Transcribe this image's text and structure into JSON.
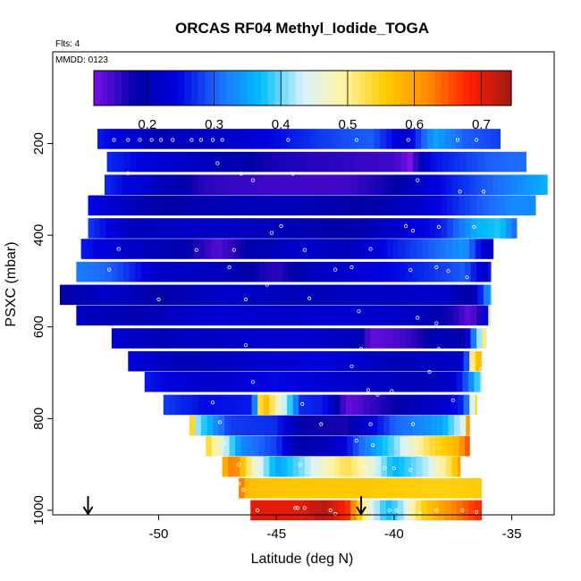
{
  "chart_data": {
    "type": "heatmap",
    "title": "ORCAS RF04 Methyl_Iodide_TOGA",
    "flights_label": "Flts: 4",
    "date_label": "MMDD: 0123",
    "xlabel": "Latitude (deg N)",
    "ylabel": "PSXC (mbar)",
    "xlim": [
      -54.5,
      -33.2
    ],
    "ylim": [
      1010,
      0
    ],
    "x_ticks": [
      -50,
      -45,
      -40,
      -35
    ],
    "x_tick_labels": [
      "-50",
      "-45",
      "-40",
      "-35"
    ],
    "y_ticks": [
      200,
      400,
      600,
      800,
      1000
    ],
    "y_tick_labels": [
      "200",
      "400",
      "600",
      "800",
      "1000"
    ],
    "colorbar": {
      "range": [
        0.12,
        0.745
      ],
      "ticks": [
        0.2,
        0.3,
        0.4,
        0.5,
        0.6,
        0.7
      ],
      "tick_labels": [
        "0.2",
        "0.3",
        "0.4",
        "0.5",
        "0.6",
        "0.7"
      ],
      "colors": [
        "#7a10e8",
        "#0000a8",
        "#0000e0",
        "#1e6cff",
        "#00bfff",
        "#d8f2ff",
        "#fff3a0",
        "#ffcc00",
        "#ff8a00",
        "#ff1e00",
        "#a01818"
      ]
    },
    "layers": [
      {
        "p": 190,
        "x0": -52.6,
        "x1": -35.5,
        "v": [
          [
            -52.6,
            0.26
          ],
          [
            -50,
            0.2
          ],
          [
            -47,
            0.22
          ],
          [
            -43,
            0.28
          ],
          [
            -41,
            0.3
          ],
          [
            -39.5,
            0.22
          ],
          [
            -38.3,
            0.35
          ],
          [
            -37,
            0.3
          ],
          [
            -35.5,
            0.28
          ]
        ]
      },
      {
        "p": 240,
        "x0": -52.2,
        "x1": -34.4,
        "v": [
          [
            -52.2,
            0.27
          ],
          [
            -50,
            0.23
          ],
          [
            -45,
            0.17
          ],
          [
            -40,
            0.15
          ],
          [
            -39.3,
            0.12
          ],
          [
            -38.5,
            0.25
          ],
          [
            -36,
            0.3
          ],
          [
            -34.4,
            0.31
          ]
        ]
      },
      {
        "p": 290,
        "x0": -52.3,
        "x1": -33.5,
        "v": [
          [
            -52.3,
            0.27
          ],
          [
            -49.5,
            0.2
          ],
          [
            -48,
            0.16
          ],
          [
            -45,
            0.15
          ],
          [
            -42,
            0.15
          ],
          [
            -40,
            0.18
          ],
          [
            -38,
            0.25
          ],
          [
            -36,
            0.3
          ],
          [
            -33.5,
            0.36
          ]
        ]
      },
      {
        "p": 335,
        "x0": -53.0,
        "x1": -34.0,
        "v": [
          [
            -53.0,
            0.25
          ],
          [
            -50,
            0.18
          ],
          [
            -47,
            0.2
          ],
          [
            -44,
            0.2
          ],
          [
            -41,
            0.18
          ],
          [
            -39,
            0.22
          ],
          [
            -37,
            0.28
          ],
          [
            -35,
            0.33
          ],
          [
            -34,
            0.33
          ]
        ]
      },
      {
        "p": 385,
        "x0": -53.0,
        "x1": -34.8,
        "v": [
          [
            -53.0,
            0.28
          ],
          [
            -51,
            0.2
          ],
          [
            -48,
            0.22
          ],
          [
            -45,
            0.2
          ],
          [
            -42,
            0.18
          ],
          [
            -40,
            0.22
          ],
          [
            -38,
            0.26
          ],
          [
            -36.5,
            0.36
          ],
          [
            -35.5,
            0.38
          ],
          [
            -34.8,
            0.3
          ]
        ]
      },
      {
        "p": 430,
        "x0": -53.3,
        "x1": -35.8,
        "v": [
          [
            -53.3,
            0.26
          ],
          [
            -51,
            0.21
          ],
          [
            -49,
            0.19
          ],
          [
            -47.5,
            0.14
          ],
          [
            -46,
            0.19
          ],
          [
            -44,
            0.22
          ],
          [
            -42,
            0.2
          ],
          [
            -40,
            0.26
          ],
          [
            -38,
            0.31
          ],
          [
            -37,
            0.34
          ],
          [
            -36,
            0.2
          ],
          [
            -35.8,
            0.28
          ]
        ]
      },
      {
        "p": 480,
        "x0": -53.5,
        "x1": -35.9,
        "v": [
          [
            -53.5,
            0.32
          ],
          [
            -52,
            0.3
          ],
          [
            -50,
            0.22
          ],
          [
            -47,
            0.2
          ],
          [
            -45,
            0.16
          ],
          [
            -43,
            0.22
          ],
          [
            -40,
            0.25
          ],
          [
            -38,
            0.28
          ],
          [
            -37,
            0.3
          ],
          [
            -36,
            0.2
          ],
          [
            -35.9,
            0.26
          ]
        ]
      },
      {
        "p": 530,
        "x0": -54.2,
        "x1": -35.9,
        "v": [
          [
            -54.2,
            0.18
          ],
          [
            -52,
            0.22
          ],
          [
            -50,
            0.18
          ],
          [
            -47,
            0.22
          ],
          [
            -44,
            0.2
          ],
          [
            -41,
            0.21
          ],
          [
            -38,
            0.22
          ],
          [
            -36.7,
            0.18
          ],
          [
            -35.9,
            0.36
          ]
        ]
      },
      {
        "p": 575,
        "x0": -53.5,
        "x1": -35.9,
        "v": [
          [
            -53.5,
            0.21
          ],
          [
            -51,
            0.19
          ],
          [
            -48,
            0.23
          ],
          [
            -45,
            0.22
          ],
          [
            -42,
            0.23
          ],
          [
            -39,
            0.21
          ],
          [
            -37.5,
            0.17
          ],
          [
            -36.8,
            0.13
          ],
          [
            -36.2,
            0.18
          ],
          [
            -35.9,
            0.45
          ]
        ]
      },
      {
        "p": 625,
        "x0": -52.0,
        "x1": -36.1,
        "v": [
          [
            -52.0,
            0.23
          ],
          [
            -50,
            0.2
          ],
          [
            -47,
            0.22
          ],
          [
            -44,
            0.23
          ],
          [
            -41.5,
            0.2
          ],
          [
            -41,
            0.13
          ],
          [
            -39.5,
            0.15
          ],
          [
            -38,
            0.2
          ],
          [
            -37,
            0.18
          ],
          [
            -36.6,
            0.33
          ],
          [
            -36.1,
            0.52
          ]
        ]
      },
      {
        "p": 675,
        "x0": -51.3,
        "x1": -36.3,
        "v": [
          [
            -51.3,
            0.24
          ],
          [
            -49,
            0.2
          ],
          [
            -46,
            0.22
          ],
          [
            -43,
            0.24
          ],
          [
            -40,
            0.2
          ],
          [
            -38,
            0.21
          ],
          [
            -37,
            0.22
          ],
          [
            -36.7,
            0.5
          ],
          [
            -36.3,
            0.6
          ]
        ]
      },
      {
        "p": 720,
        "x0": -50.6,
        "x1": -36.3,
        "v": [
          [
            -50.6,
            0.26
          ],
          [
            -48,
            0.22
          ],
          [
            -45,
            0.25
          ],
          [
            -42,
            0.22
          ],
          [
            -39,
            0.2
          ],
          [
            -37.5,
            0.22
          ],
          [
            -36.9,
            0.3
          ],
          [
            -36.3,
            0.42
          ]
        ]
      },
      {
        "p": 770,
        "x0": -49.8,
        "x1": -36.5,
        "v": [
          [
            -49.8,
            0.28
          ],
          [
            -48,
            0.25
          ],
          [
            -46,
            0.26
          ],
          [
            -45.6,
            0.6
          ],
          [
            -44.9,
            0.47
          ],
          [
            -44.3,
            0.36
          ],
          [
            -44,
            0.27
          ],
          [
            -43,
            0.26
          ],
          [
            -42,
            0.13
          ],
          [
            -40,
            0.18
          ],
          [
            -38,
            0.22
          ],
          [
            -37,
            0.27
          ],
          [
            -36.5,
            0.55
          ]
        ]
      },
      {
        "p": 815,
        "x0": -48.7,
        "x1": -36.8,
        "v": [
          [
            -48.7,
            0.6
          ],
          [
            -48.3,
            0.4
          ],
          [
            -47,
            0.28
          ],
          [
            -45,
            0.27
          ],
          [
            -44,
            0.18
          ],
          [
            -42,
            0.17
          ],
          [
            -40,
            0.3
          ],
          [
            -38,
            0.35
          ],
          [
            -37,
            0.45
          ],
          [
            -36.8,
            0.62
          ]
        ]
      },
      {
        "p": 860,
        "x0": -48.0,
        "x1": -36.8,
        "v": [
          [
            -48.0,
            0.55
          ],
          [
            -47.3,
            0.45
          ],
          [
            -46.5,
            0.33
          ],
          [
            -45,
            0.28
          ],
          [
            -44,
            0.18
          ],
          [
            -42.3,
            0.22
          ],
          [
            -41.5,
            0.3
          ],
          [
            -40,
            0.4
          ],
          [
            -38.5,
            0.53
          ],
          [
            -37.3,
            0.58
          ],
          [
            -36.8,
            0.66
          ]
        ]
      },
      {
        "p": 905,
        "x0": -47.3,
        "x1": -37.2,
        "v": [
          [
            -47.3,
            0.57
          ],
          [
            -46.8,
            0.64
          ],
          [
            -46,
            0.48
          ],
          [
            -45,
            0.35
          ],
          [
            -44,
            0.4
          ],
          [
            -43,
            0.47
          ],
          [
            -42,
            0.53
          ],
          [
            -41,
            0.46
          ],
          [
            -40,
            0.36
          ],
          [
            -38.7,
            0.42
          ],
          [
            -37.6,
            0.53
          ],
          [
            -37.2,
            0.6
          ]
        ]
      },
      {
        "p": 952,
        "x0": -46.6,
        "x1": -36.3,
        "v": [
          [
            -46.6,
            0.65
          ],
          [
            -46.2,
            0.57
          ],
          [
            -44,
            0.56
          ],
          [
            -41,
            0.56
          ],
          [
            -38,
            0.55
          ],
          [
            -36.3,
            0.56
          ]
        ]
      },
      {
        "p": 1000,
        "x0": -46.1,
        "x1": -36.3,
        "v": [
          [
            -46.1,
            0.7
          ],
          [
            -44,
            0.7
          ],
          [
            -43,
            0.73
          ],
          [
            -42,
            0.68
          ],
          [
            -41,
            0.45
          ],
          [
            -40.3,
            0.37
          ],
          [
            -39.8,
            0.4
          ],
          [
            -38.8,
            0.55
          ],
          [
            -37.5,
            0.62
          ],
          [
            -36.3,
            0.68
          ]
        ]
      }
    ],
    "band_half_height": 22,
    "sample_points": [
      [
        -51.9,
        192
      ],
      [
        -51.3,
        192
      ],
      [
        -50.8,
        192
      ],
      [
        -50.3,
        192
      ],
      [
        -49.9,
        192
      ],
      [
        -49.4,
        192
      ],
      [
        -48.6,
        192
      ],
      [
        -48.2,
        192
      ],
      [
        -47.7,
        192
      ],
      [
        -47.3,
        192
      ],
      [
        -44.5,
        192
      ],
      [
        -41.6,
        192
      ],
      [
        -39.4,
        192
      ],
      [
        -37.3,
        192
      ],
      [
        -36.5,
        192
      ],
      [
        -47.5,
        243
      ],
      [
        -51.3,
        265
      ],
      [
        -46.5,
        266
      ],
      [
        -44.3,
        266
      ],
      [
        -39.0,
        280
      ],
      [
        -46.0,
        280
      ],
      [
        -52.6,
        300
      ],
      [
        -37.2,
        305
      ],
      [
        -36.2,
        305
      ],
      [
        -45.2,
        395
      ],
      [
        -44.8,
        380
      ],
      [
        -39.5,
        380
      ],
      [
        -39.2,
        390
      ],
      [
        -38.1,
        382
      ],
      [
        -36.6,
        382
      ],
      [
        -51.7,
        430
      ],
      [
        -48.4,
        432
      ],
      [
        -46.8,
        432
      ],
      [
        -43.8,
        432
      ],
      [
        -41.0,
        430
      ],
      [
        -52.1,
        475
      ],
      [
        -47.0,
        470
      ],
      [
        -42.5,
        475
      ],
      [
        -41.8,
        470
      ],
      [
        -39.3,
        476
      ],
      [
        -38.2,
        470
      ],
      [
        -37.7,
        478
      ],
      [
        -45.4,
        508
      ],
      [
        -36.9,
        492
      ],
      [
        -35.5,
        488
      ],
      [
        -50.0,
        540
      ],
      [
        -46.3,
        540
      ],
      [
        -43.6,
        538
      ],
      [
        -41.5,
        566
      ],
      [
        -35.8,
        560
      ],
      [
        -39.0,
        580
      ],
      [
        -38.2,
        592
      ],
      [
        -46.3,
        640
      ],
      [
        -41.4,
        648
      ],
      [
        -38.1,
        648
      ],
      [
        -41.8,
        686
      ],
      [
        -38.5,
        698
      ],
      [
        -36.3,
        692
      ],
      [
        -46.0,
        720
      ],
      [
        -41.1,
        738
      ],
      [
        -40.7,
        748
      ],
      [
        -40.1,
        740
      ],
      [
        -47.7,
        765
      ],
      [
        -43.9,
        768
      ],
      [
        -37.5,
        760
      ],
      [
        -47.4,
        808
      ],
      [
        -43.1,
        812
      ],
      [
        -41.0,
        812
      ],
      [
        -39.2,
        812
      ],
      [
        -36.6,
        800
      ],
      [
        -47.2,
        853
      ],
      [
        -40.9,
        858
      ],
      [
        -41.6,
        848
      ],
      [
        -46.6,
        900
      ],
      [
        -44.0,
        900
      ],
      [
        -41.3,
        904
      ],
      [
        -40.4,
        908
      ],
      [
        -40.0,
        908
      ],
      [
        -39.3,
        912
      ],
      [
        -46.6,
        942
      ],
      [
        -46.4,
        955
      ],
      [
        -44.2,
        995
      ],
      [
        -44.1,
        995
      ],
      [
        -43.8,
        995
      ],
      [
        -40.2,
        1000
      ],
      [
        -39.9,
        1000
      ],
      [
        -39.4,
        1008
      ],
      [
        -38.9,
        1008
      ],
      [
        -38.2,
        1000
      ],
      [
        -37.1,
        1000
      ],
      [
        -36.5,
        1004
      ],
      [
        -42.7,
        1000
      ],
      [
        -42.5,
        1008
      ],
      [
        -46.2,
        1008
      ],
      [
        -45.8,
        1000
      ]
    ],
    "arrows_at_lat": [
      -53.0,
      -41.4
    ]
  }
}
